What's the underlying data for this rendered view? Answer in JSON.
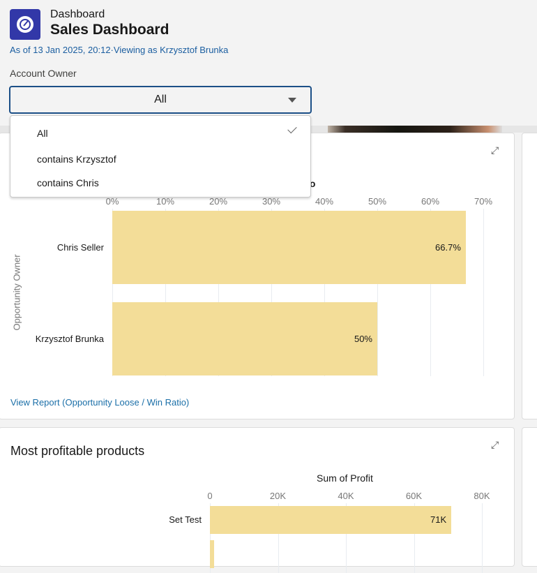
{
  "header": {
    "breadcrumb": "Dashboard",
    "title": "Sales Dashboard",
    "subtitle": "As of 13 Jan 2025, 20:12·Viewing as Krzysztof Brunka",
    "icon": "dashboard-gauge-icon",
    "icon_color": "#3238a8"
  },
  "filter": {
    "label": "Account Owner",
    "value": "All",
    "options": [
      {
        "label": "All",
        "selected": true
      },
      {
        "label": "contains Krzysztof",
        "selected": false
      },
      {
        "label": "contains Chris",
        "selected": false
      }
    ]
  },
  "card1": {
    "title_fragment": "io",
    "link": "View Report (Opportunity Loose / Win Ratio)",
    "expand_icon": "expand-icon"
  },
  "card2": {
    "title": "Most profitable products",
    "expand_icon": "expand-icon"
  },
  "chart_data": [
    {
      "type": "bar",
      "orientation": "horizontal",
      "ylabel": "Opportunity Owner",
      "categories": [
        "Chris Seller",
        "Krzysztof Brunka"
      ],
      "values": [
        66.7,
        50
      ],
      "data_labels": [
        "66.7%",
        "50%"
      ],
      "ticks": [
        "0%",
        "10%",
        "20%",
        "30%",
        "40%",
        "50%",
        "60%",
        "70%"
      ],
      "xlim": [
        0,
        70
      ],
      "bar_color": "#f3dd98",
      "grid": true
    },
    {
      "type": "bar",
      "orientation": "horizontal",
      "xlabel": "Sum of Profit",
      "categories": [
        "Set Test",
        ""
      ],
      "values": [
        71000,
        1200
      ],
      "data_labels": [
        "71K",
        ""
      ],
      "ticks": [
        "0",
        "20K",
        "40K",
        "60K",
        "80K"
      ],
      "xlim": [
        0,
        80000
      ],
      "bar_color": "#f3dd98",
      "grid": true
    }
  ]
}
